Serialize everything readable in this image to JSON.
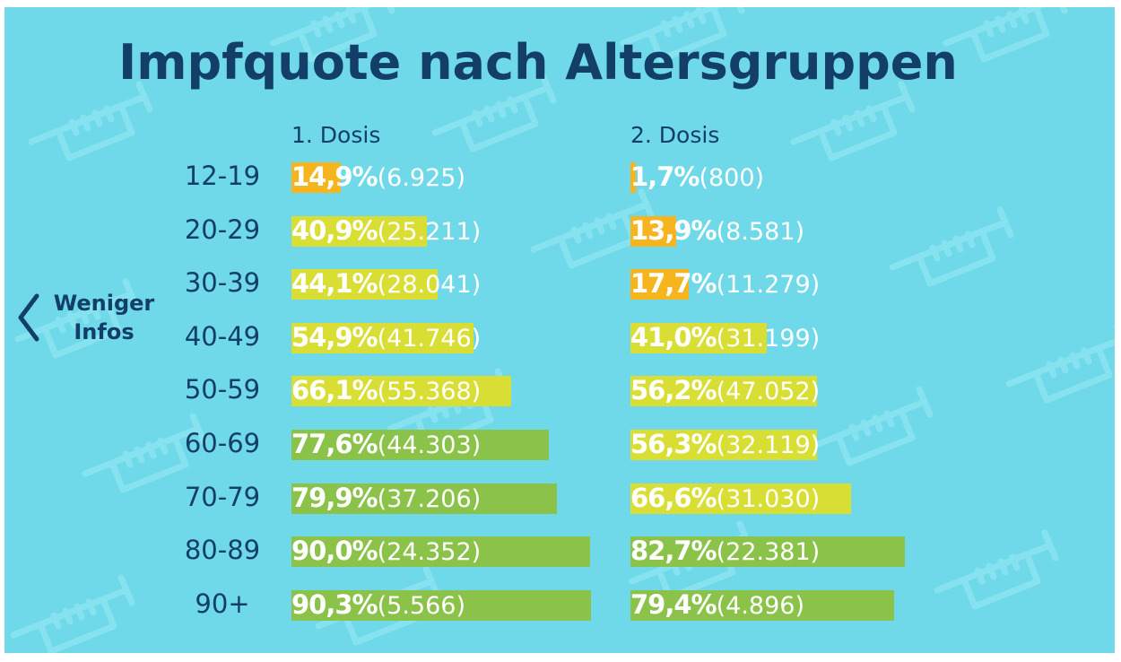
{
  "title": "Impfquote nach Altersgruppen",
  "nav": {
    "back_label_line1": "Weniger",
    "back_label_line2": "Infos"
  },
  "colors": {
    "background": "#6fd9ea",
    "title": "#123e68",
    "low": "#f6b51e",
    "mid": "#d9de35",
    "high": "#8bc34a"
  },
  "chart_data": {
    "type": "bar",
    "categories": [
      "12-19",
      "20-29",
      "30-39",
      "40-49",
      "50-59",
      "60-69",
      "70-79",
      "80-89",
      "90+"
    ],
    "series": [
      {
        "name": "1. Dosis",
        "values": [
          14.9,
          40.9,
          44.1,
          54.9,
          66.1,
          77.6,
          79.9,
          90.0,
          90.3
        ],
        "labels": [
          "14,9%",
          "40,9%",
          "44,1%",
          "54,9%",
          "66,1%",
          "77,6%",
          "79,9%",
          "90,0%",
          "90,3%"
        ],
        "counts": [
          "(6.925)",
          "(25.211)",
          "(28.041)",
          "(41.746)",
          "(55.368)",
          "(44.303)",
          "(37.206)",
          "(24.352)",
          "(5.566)"
        ]
      },
      {
        "name": "2. Dosis",
        "values": [
          1.7,
          13.9,
          17.7,
          41.0,
          56.2,
          56.3,
          66.6,
          82.7,
          79.4
        ],
        "labels": [
          "1,7%",
          "13,9%",
          "17,7%",
          "41,0%",
          "56,2%",
          "56,3%",
          "66,6%",
          "82,7%",
          "79,4%"
        ],
        "counts": [
          "(800)",
          "(8.581)",
          "(11.279)",
          "(31.199)",
          "(47.052)",
          "(32.119)",
          "(31.030)",
          "(22.381)",
          "(4.896)"
        ]
      }
    ],
    "xlim": [
      0,
      100
    ],
    "grid": false,
    "legend": "none"
  }
}
